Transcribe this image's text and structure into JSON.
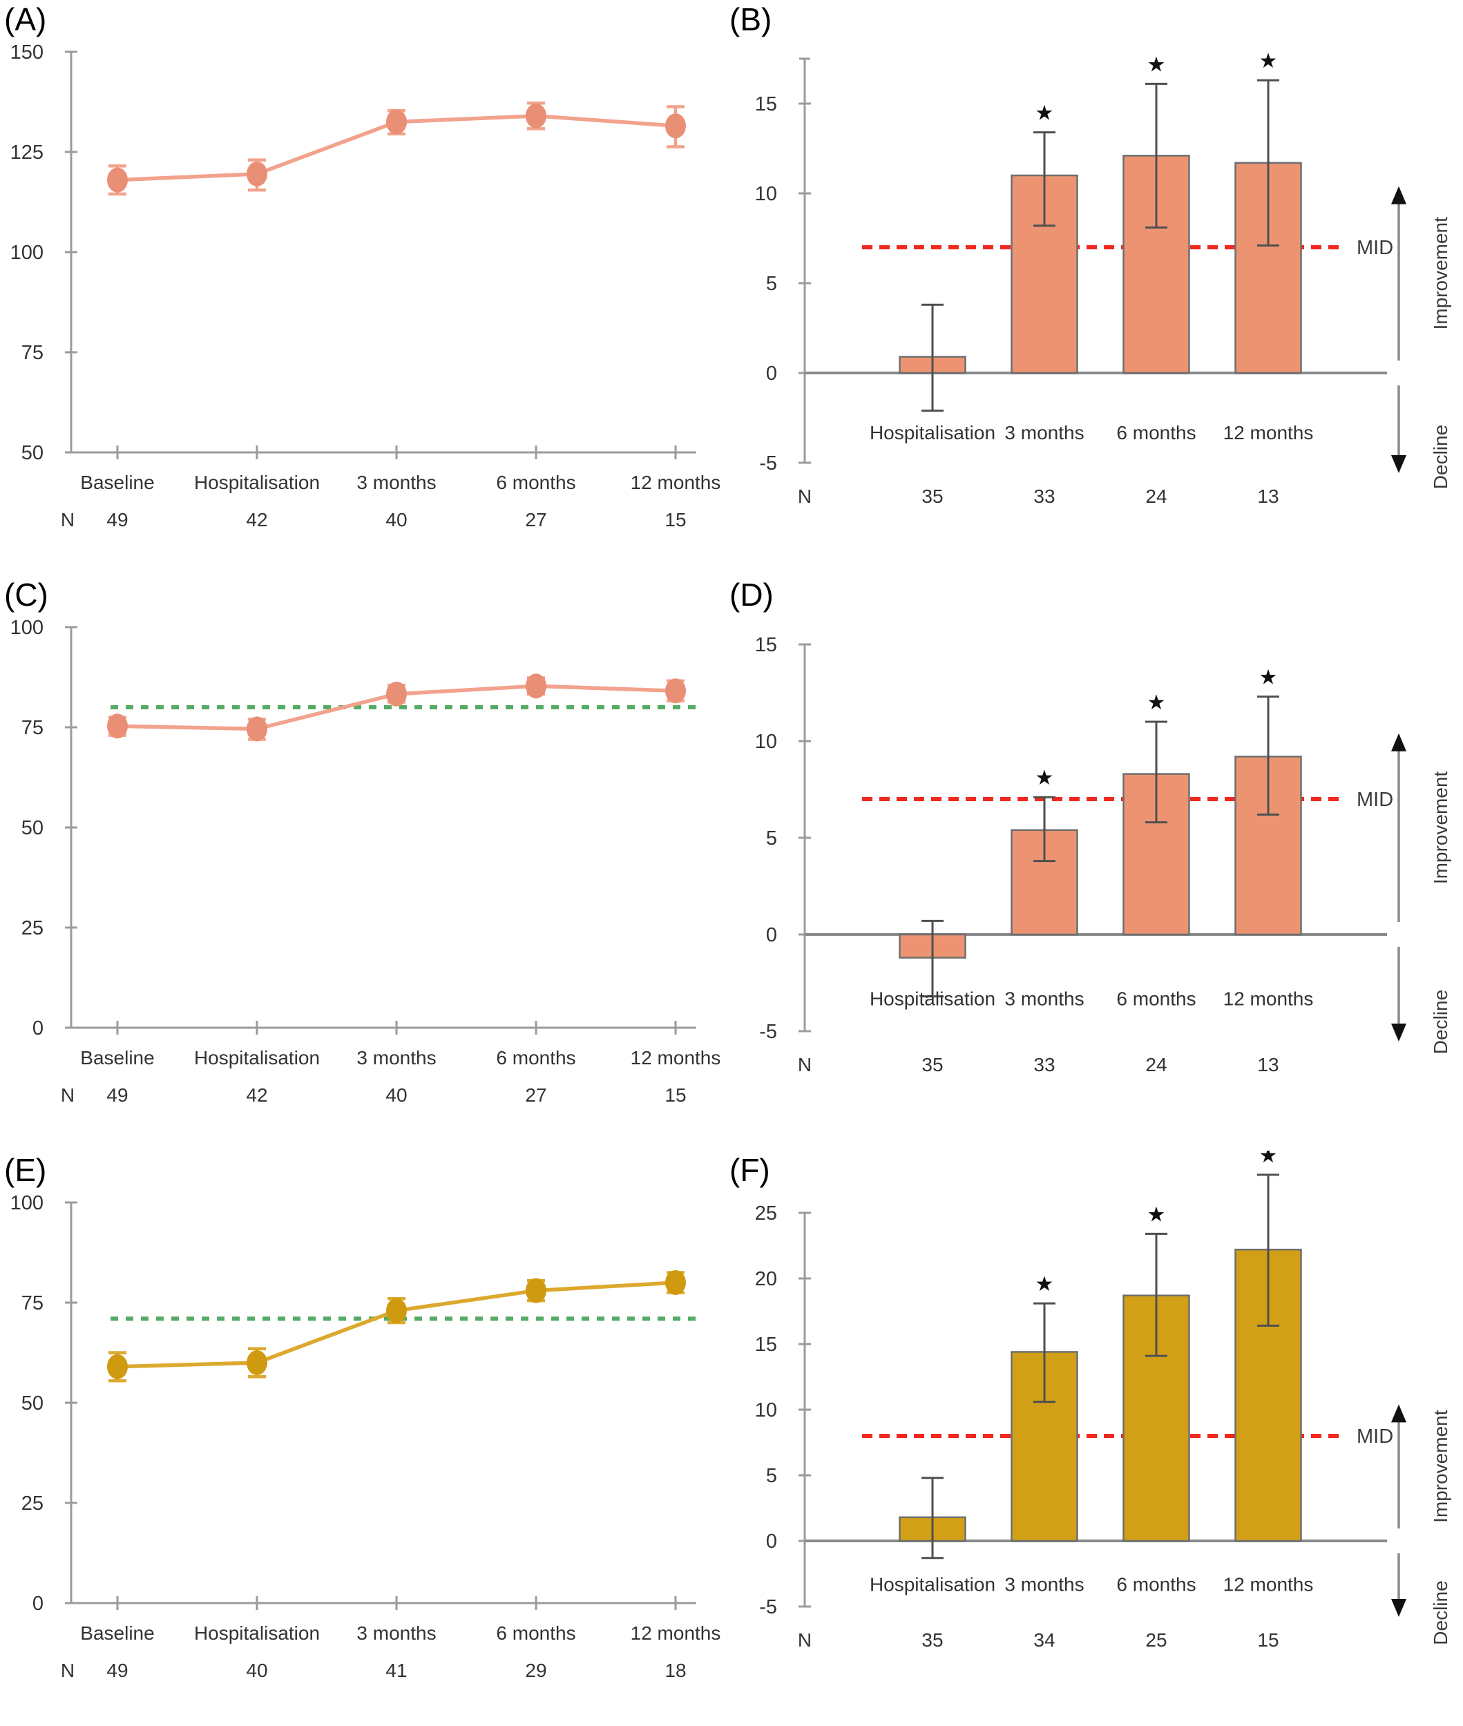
{
  "figure_title": "",
  "labels": {
    "n_label": "N",
    "mid_label": "MID",
    "improvement_label": "Improvement",
    "decline_label": "Decline",
    "significance_marker": "★"
  },
  "colors": {
    "salmon_line": "#F2A28D",
    "salmon_marker": "#E98F75",
    "salmon_bar_fill": "#EC9471",
    "gold_line": "#DCA92E",
    "gold_marker": "#CF9A10",
    "gold_bar_fill": "#D2A016",
    "bar_border": "#6E6E6E",
    "error_bar": "#4F4F4F",
    "axis": "#9B9B9B",
    "tick_text": "#333333",
    "green_dash": "#54AC63",
    "red_dash": "#F0281E",
    "panel_label_text": "#000000"
  },
  "chart_data": [
    {
      "id": "A",
      "panel_label": "(A)",
      "type": "line",
      "series_color_key": "salmon",
      "ylim": [
        50,
        150
      ],
      "yticks": [
        150,
        125,
        100,
        75,
        50
      ],
      "categories": [
        "Baseline",
        "Hospitalisation",
        "3 months",
        "6 months",
        "12 months"
      ],
      "n_values": [
        49,
        42,
        40,
        27,
        15
      ],
      "points": [
        {
          "value": 118.0,
          "lo": 114.5,
          "hi": 121.5
        },
        {
          "value": 119.5,
          "lo": 115.5,
          "hi": 123.0
        },
        {
          "value": 132.5,
          "lo": 129.5,
          "hi": 135.3
        },
        {
          "value": 134.0,
          "lo": 130.8,
          "hi": 137.2
        },
        {
          "value": 131.5,
          "lo": 126.3,
          "hi": 136.3
        }
      ],
      "reference_line": null
    },
    {
      "id": "B",
      "panel_label": "(B)",
      "type": "bar",
      "series_color_key": "salmon",
      "ylim": [
        -5,
        17.5
      ],
      "yticks": [
        15,
        10,
        5,
        0,
        -5
      ],
      "categories": [
        "Hospitalisation",
        "3 months",
        "6 months",
        "12 months"
      ],
      "n_values": [
        35,
        33,
        24,
        13
      ],
      "bars": [
        {
          "value": 0.9,
          "lo": -2.1,
          "hi": 3.8,
          "significant": false
        },
        {
          "value": 11.0,
          "lo": 8.2,
          "hi": 13.4,
          "significant": true
        },
        {
          "value": 12.1,
          "lo": 8.1,
          "hi": 16.1,
          "significant": true
        },
        {
          "value": 11.7,
          "lo": 7.1,
          "hi": 16.3,
          "significant": true
        }
      ],
      "mid_value": 7
    },
    {
      "id": "C",
      "panel_label": "(C)",
      "type": "line",
      "series_color_key": "salmon",
      "ylim": [
        0,
        100
      ],
      "yticks": [
        100,
        75,
        50,
        25,
        0
      ],
      "categories": [
        "Baseline",
        "Hospitalisation",
        "3 months",
        "6 months",
        "12 months"
      ],
      "n_values": [
        49,
        42,
        40,
        27,
        15
      ],
      "points": [
        {
          "value": 75.3,
          "lo": 73.0,
          "hi": 77.5
        },
        {
          "value": 74.6,
          "lo": 72.0,
          "hi": 77.0
        },
        {
          "value": 83.3,
          "lo": 81.3,
          "hi": 85.5
        },
        {
          "value": 85.3,
          "lo": 83.3,
          "hi": 87.3
        },
        {
          "value": 84.1,
          "lo": 81.6,
          "hi": 86.6
        }
      ],
      "reference_line": 80
    },
    {
      "id": "D",
      "panel_label": "(D)",
      "type": "bar",
      "series_color_key": "salmon",
      "ylim": [
        -5,
        15
      ],
      "yticks": [
        15,
        10,
        5,
        0,
        -5
      ],
      "categories": [
        "Hospitalisation",
        "3 months",
        "6 months",
        "12 months"
      ],
      "n_values": [
        35,
        33,
        24,
        13
      ],
      "bars": [
        {
          "value": -1.2,
          "lo": -3.2,
          "hi": 0.7,
          "significant": false
        },
        {
          "value": 5.4,
          "lo": 3.8,
          "hi": 7.1,
          "significant": true
        },
        {
          "value": 8.3,
          "lo": 5.8,
          "hi": 11.0,
          "significant": true
        },
        {
          "value": 9.2,
          "lo": 6.2,
          "hi": 12.3,
          "significant": true
        }
      ],
      "mid_value": 7
    },
    {
      "id": "E",
      "panel_label": "(E)",
      "type": "line",
      "series_color_key": "gold",
      "ylim": [
        0,
        100
      ],
      "yticks": [
        100,
        75,
        50,
        25,
        0
      ],
      "categories": [
        "Baseline",
        "Hospitalisation",
        "3 months",
        "6 months",
        "12 months"
      ],
      "n_values": [
        49,
        40,
        41,
        29,
        18
      ],
      "points": [
        {
          "value": 59.0,
          "lo": 55.5,
          "hi": 62.5
        },
        {
          "value": 60.0,
          "lo": 56.5,
          "hi": 63.5
        },
        {
          "value": 73.0,
          "lo": 70.0,
          "hi": 76.0
        },
        {
          "value": 78.0,
          "lo": 75.5,
          "hi": 80.5
        },
        {
          "value": 80.0,
          "lo": 77.5,
          "hi": 82.5
        }
      ],
      "reference_line": 71
    },
    {
      "id": "F",
      "panel_label": "(F)",
      "type": "bar",
      "series_color_key": "gold",
      "ylim": [
        -5,
        25
      ],
      "yticks": [
        25,
        20,
        15,
        10,
        5,
        0,
        -5
      ],
      "categories": [
        "Hospitalisation",
        "3 months",
        "6 months",
        "12 months"
      ],
      "n_values": [
        35,
        34,
        25,
        15
      ],
      "bars": [
        {
          "value": 1.8,
          "lo": -1.3,
          "hi": 4.8,
          "significant": false
        },
        {
          "value": 14.4,
          "lo": 10.6,
          "hi": 18.1,
          "significant": true
        },
        {
          "value": 18.7,
          "lo": 14.1,
          "hi": 23.4,
          "significant": true
        },
        {
          "value": 22.2,
          "lo": 16.4,
          "hi": 27.9,
          "significant": true
        }
      ],
      "mid_value": 8
    }
  ]
}
